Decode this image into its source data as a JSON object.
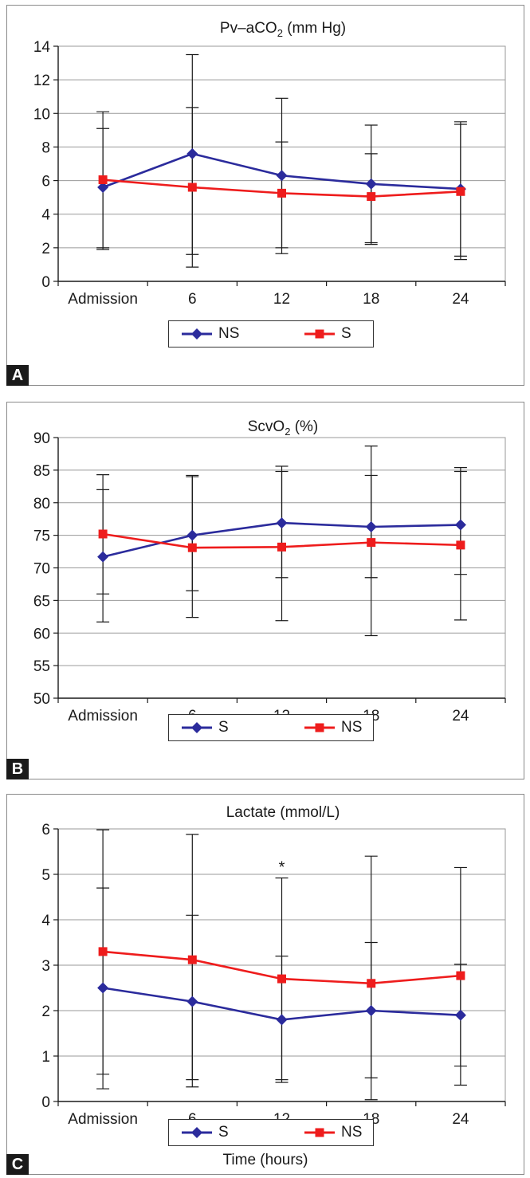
{
  "chart_data": [
    {
      "panel_label": "A",
      "type": "line",
      "title_main": "Pv–aCO",
      "title_sub": "2",
      "title_rest": " (mm Hg)",
      "categories": [
        "Admission",
        "6",
        "12",
        "18",
        "24"
      ],
      "ylim": [
        0,
        14
      ],
      "yticks": [
        0,
        2,
        4,
        6,
        8,
        10,
        12,
        14
      ],
      "grid": true,
      "legend_position": "bottom-center",
      "series": [
        {
          "name": "NS",
          "color": "#2b2b9c",
          "marker": "diamond",
          "values": [
            5.6,
            7.6,
            6.3,
            5.8,
            5.5
          ],
          "err_low": [
            2.0,
            1.6,
            2.0,
            2.3,
            1.5
          ],
          "err_high": [
            9.1,
            13.5,
            10.9,
            9.3,
            9.5
          ]
        },
        {
          "name": "S",
          "color": "#ee1c1c",
          "marker": "square",
          "values": [
            6.05,
            5.6,
            5.25,
            5.05,
            5.35
          ],
          "err_low": [
            1.9,
            0.85,
            1.65,
            2.2,
            1.3
          ],
          "err_high": [
            10.1,
            10.35,
            8.3,
            7.6,
            9.35
          ]
        }
      ],
      "annotations": []
    },
    {
      "panel_label": "B",
      "type": "line",
      "title_main": "ScvO",
      "title_sub": "2",
      "title_rest": " (%)",
      "categories": [
        "Admission",
        "6",
        "12",
        "18",
        "24"
      ],
      "ylim": [
        50,
        90
      ],
      "yticks": [
        50,
        55,
        60,
        65,
        70,
        75,
        80,
        85,
        90
      ],
      "grid": true,
      "legend_position": "bottom-center",
      "series": [
        {
          "name": "S",
          "color": "#2b2b9c",
          "marker": "diamond",
          "values": [
            71.7,
            75.0,
            76.9,
            76.3,
            76.6
          ],
          "err_low": [
            61.7,
            66.5,
            68.5,
            68.5,
            69.0
          ],
          "err_high": [
            82.0,
            84.0,
            84.8,
            84.2,
            84.8
          ]
        },
        {
          "name": "NS",
          "color": "#ee1c1c",
          "marker": "square",
          "values": [
            75.2,
            73.1,
            73.2,
            73.9,
            73.5
          ],
          "err_low": [
            66.0,
            62.4,
            61.9,
            59.6,
            62.0
          ],
          "err_high": [
            84.3,
            84.2,
            85.6,
            88.7,
            85.4
          ]
        }
      ],
      "annotations": []
    },
    {
      "panel_label": "C",
      "type": "line",
      "title_main": "Lactate (mmol/L)",
      "title_sub": "",
      "title_rest": "",
      "xlabel": "Time (hours)",
      "categories": [
        "Admission",
        "6",
        "12",
        "18",
        "24"
      ],
      "ylim": [
        0,
        6
      ],
      "yticks": [
        0,
        1,
        2,
        3,
        4,
        5,
        6
      ],
      "grid": true,
      "legend_position": "bottom-center",
      "series": [
        {
          "name": "S",
          "color": "#2b2b9c",
          "marker": "diamond",
          "values": [
            2.5,
            2.2,
            1.8,
            2.0,
            1.9
          ],
          "err_low": [
            0.6,
            0.48,
            0.48,
            0.52,
            0.78
          ],
          "err_high": [
            4.7,
            4.1,
            3.2,
            3.5,
            3.02
          ]
        },
        {
          "name": "NS",
          "color": "#ee1c1c",
          "marker": "square",
          "values": [
            3.3,
            3.12,
            2.7,
            2.6,
            2.77
          ],
          "err_low": [
            0.28,
            0.32,
            0.42,
            0.04,
            0.36
          ],
          "err_high": [
            5.98,
            5.88,
            4.92,
            5.4,
            5.15
          ]
        }
      ],
      "annotations": [
        {
          "text": "*",
          "category": "12",
          "y": 5.15
        }
      ]
    }
  ]
}
